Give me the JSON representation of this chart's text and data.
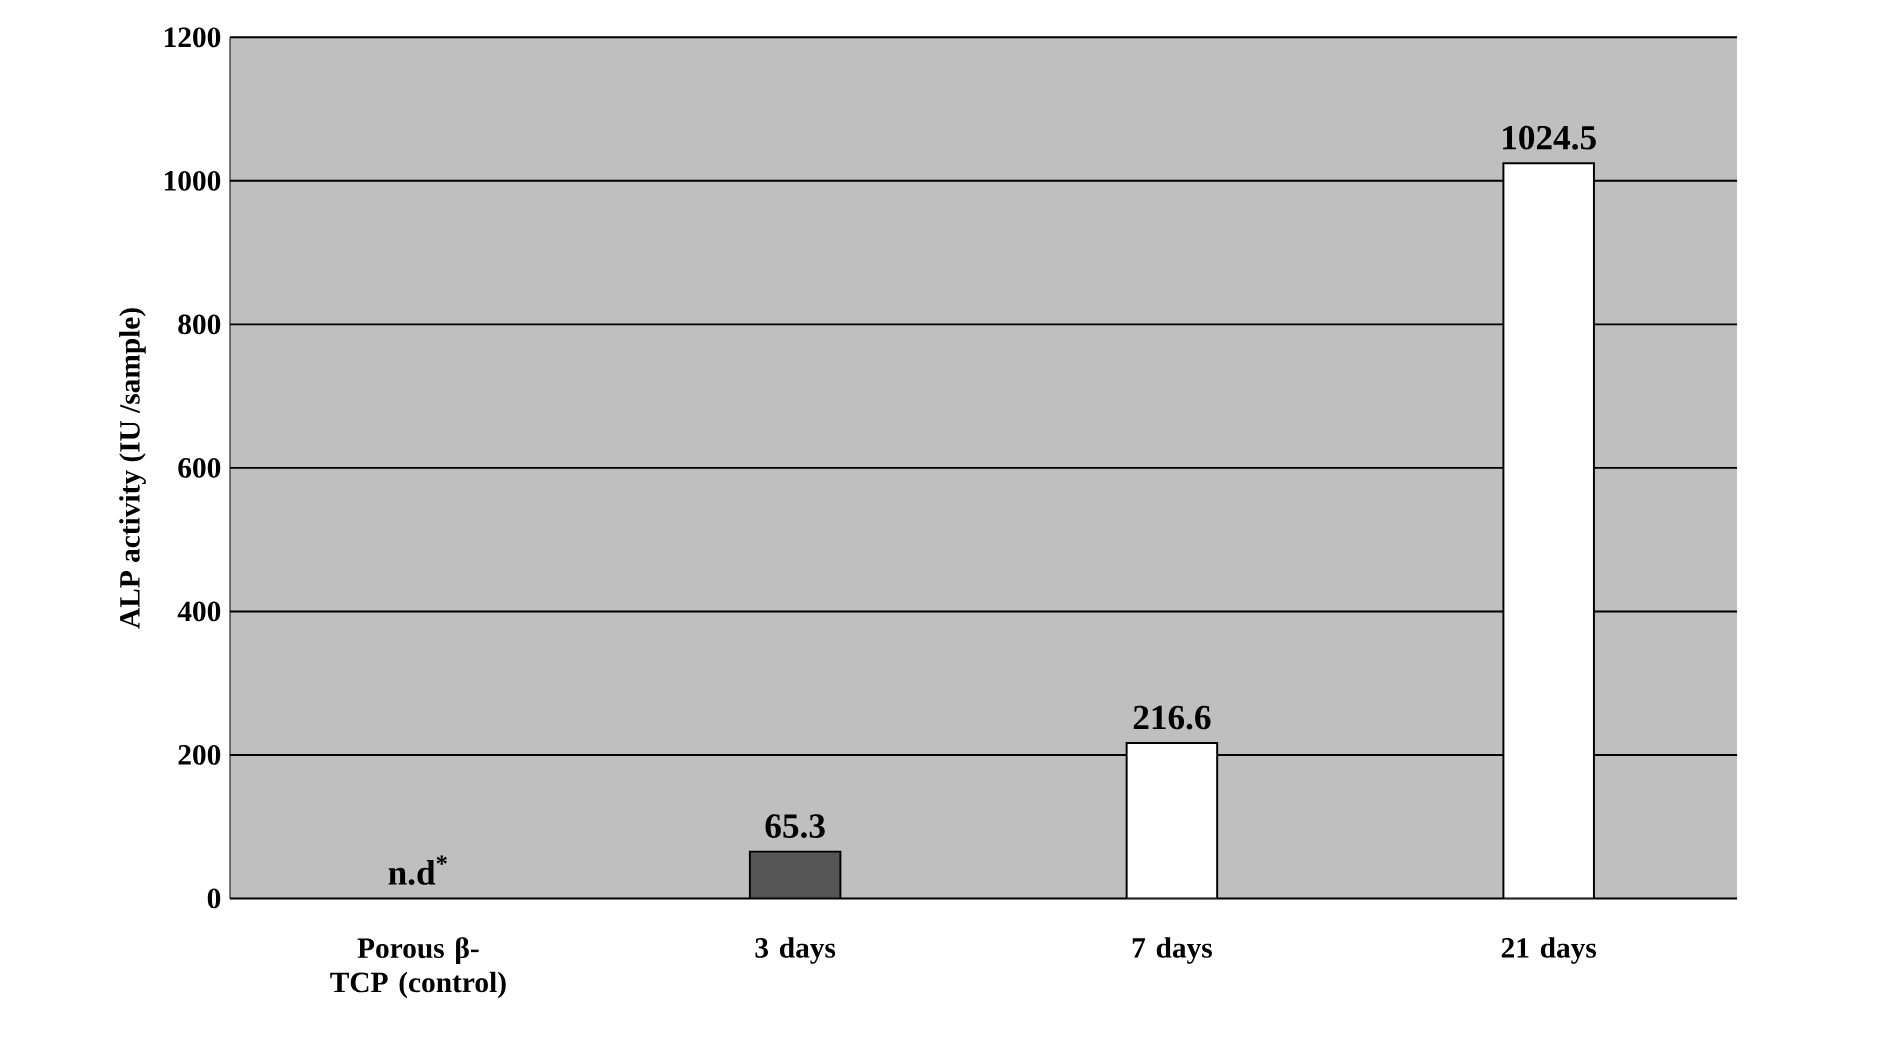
{
  "chart_data": {
    "type": "bar",
    "ylabel": "ALP activity (IU /sample)",
    "categories": [
      "Porous β-TCP (control)",
      "3 days",
      "7 days",
      "21 days"
    ],
    "values": [
      null,
      65.3,
      216.6,
      1024.5
    ],
    "colors": [
      "#ffffff",
      "#555555",
      "#ffffff",
      "#ffffff"
    ],
    "value_labels": [
      "n.d$^{*}$",
      "65.3",
      "216.6",
      "1024.5"
    ],
    "ylim": [
      0,
      1200
    ],
    "yticks": [
      0,
      200,
      400,
      600,
      800,
      1000,
      1200
    ],
    "grid": "y"
  }
}
